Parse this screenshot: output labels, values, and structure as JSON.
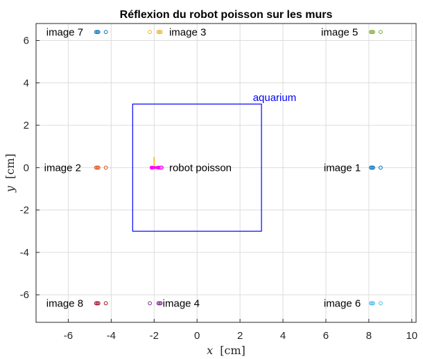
{
  "chart_data": {
    "type": "scatter",
    "title": "Réflexion du robot poisson sur les murs",
    "xlabel": {
      "var": "x",
      "unit": "[cm]"
    },
    "ylabel": {
      "var": "y",
      "unit": "[cm]"
    },
    "xlim": [
      -7.5,
      10.2
    ],
    "ylim": [
      -7.3,
      6.8
    ],
    "xticks": [
      -6,
      -4,
      -2,
      0,
      2,
      4,
      6,
      8,
      10
    ],
    "yticks": [
      -6,
      -4,
      -2,
      0,
      2,
      4,
      6
    ],
    "xtick_labels": [
      "-6",
      "-4",
      "-2",
      "0",
      "2",
      "4",
      "6",
      "8",
      "10"
    ],
    "ytick_labels": [
      "-6",
      "-4",
      "-2",
      "0",
      "2",
      "4",
      "6"
    ],
    "grid": true,
    "aquarium": {
      "label": "aquarium",
      "color": "#0000ff",
      "x": [
        -3,
        3
      ],
      "y": [
        -3,
        3
      ],
      "label_pos": [
        2.6,
        3.3
      ]
    },
    "robot": {
      "label": "robot poisson",
      "color": "#ff00ff",
      "tail_color": "#ffb000",
      "points": [
        [
          -2.1,
          0
        ],
        [
          -1.8,
          0
        ],
        [
          -1.7,
          0
        ],
        [
          -1.65,
          0
        ]
      ],
      "body": [
        [
          -2.2,
          0
        ],
        [
          -1.75,
          0
        ]
      ],
      "tail": [
        [
          -2.0,
          0.0
        ],
        [
          -2.0,
          0.5
        ]
      ],
      "label_pos": [
        -1.3,
        0
      ]
    },
    "series": [
      {
        "name": "image 1",
        "color": "#0072bd",
        "x": [
          8.1,
          8.15,
          8.2,
          8.55
        ],
        "y": [
          0,
          0,
          0,
          0
        ],
        "label_pos": [
          5.9,
          0
        ],
        "label_anchor": "start"
      },
      {
        "name": "image 2",
        "color": "#d95319",
        "x": [
          -4.7,
          -4.65,
          -4.6,
          -4.25
        ],
        "y": [
          0,
          0,
          0,
          0
        ],
        "label_pos": [
          -5.4,
          0
        ],
        "label_anchor": "end"
      },
      {
        "name": "image 3",
        "color": "#edb120",
        "x": [
          -2.2,
          -1.8,
          -1.75,
          -1.7
        ],
        "y": [
          6.4,
          6.4,
          6.4,
          6.4
        ],
        "label_pos": [
          -1.3,
          6.4
        ],
        "label_anchor": "start"
      },
      {
        "name": "image 4",
        "color": "#7e2f8e",
        "x": [
          -2.2,
          -1.8,
          -1.75,
          -1.7
        ],
        "y": [
          -6.4,
          -6.4,
          -6.4,
          -6.4
        ],
        "label_pos": [
          -1.6,
          -6.4
        ],
        "label_anchor": "start"
      },
      {
        "name": "image 5",
        "color": "#77ac30",
        "x": [
          8.1,
          8.15,
          8.2,
          8.55
        ],
        "y": [
          6.4,
          6.4,
          6.4,
          6.4
        ],
        "label_pos": [
          7.5,
          6.4
        ],
        "label_anchor": "end"
      },
      {
        "name": "image 6",
        "color": "#4dbeee",
        "x": [
          8.1,
          8.15,
          8.2,
          8.55
        ],
        "y": [
          -6.4,
          -6.4,
          -6.4,
          -6.4
        ],
        "label_pos": [
          5.9,
          -6.4
        ],
        "label_anchor": "start"
      },
      {
        "name": "image 7",
        "color": "#0072bd",
        "x": [
          -4.7,
          -4.65,
          -4.6,
          -4.25
        ],
        "y": [
          6.4,
          6.4,
          6.4,
          6.4
        ],
        "label_pos": [
          -5.3,
          6.4
        ],
        "label_anchor": "end"
      },
      {
        "name": "image 8",
        "color": "#a2142f",
        "x": [
          -4.7,
          -4.65,
          -4.6,
          -4.25
        ],
        "y": [
          -6.4,
          -6.4,
          -6.4,
          -6.4
        ],
        "label_pos": [
          -5.3,
          -6.4
        ],
        "label_anchor": "end"
      }
    ]
  }
}
